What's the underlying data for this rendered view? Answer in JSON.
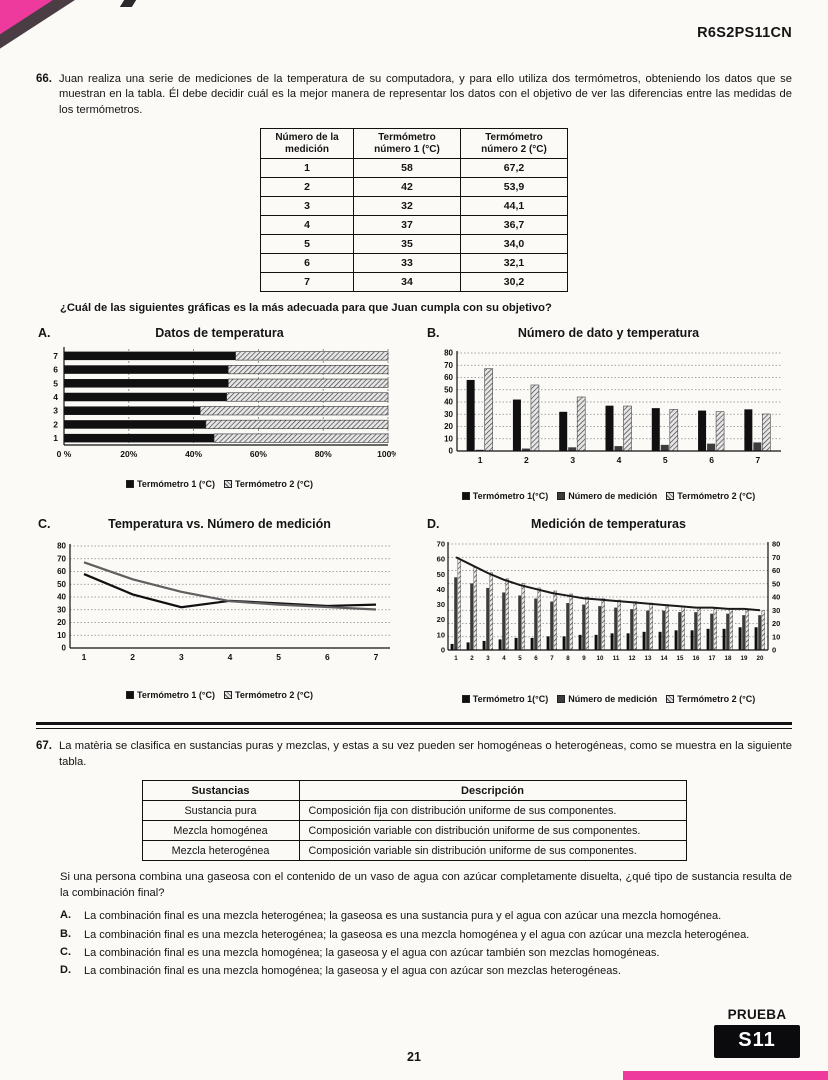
{
  "header": {
    "code": "R6S2PS11CN"
  },
  "q66": {
    "number": "66.",
    "text": "Juan realiza una serie de mediciones de la temperatura de su computadora, y para ello utiliza dos termómetros, obteniendo los datos que se muestran en la tabla. Él debe decidir cuál es la mejor manera de representar los datos con el objetivo de ver las diferencias entre las medidas de los termómetros.",
    "table": {
      "headers": [
        "Número de la medición",
        "Termómetro número 1 (°C)",
        "Termómetro número 2 (°C)"
      ],
      "rows": [
        [
          "1",
          "58",
          "67,2"
        ],
        [
          "2",
          "42",
          "53,9"
        ],
        [
          "3",
          "32",
          "44,1"
        ],
        [
          "4",
          "37",
          "36,7"
        ],
        [
          "5",
          "35",
          "34,0"
        ],
        [
          "6",
          "33",
          "32,1"
        ],
        [
          "7",
          "34",
          "30,2"
        ]
      ]
    },
    "prompt": "¿Cuál de las siguientes gráficas es la más adecuada para que Juan cumpla con su objetivo?"
  },
  "chart_data": [
    {
      "option": "A.",
      "type": "bar",
      "variant": "horizontal-stacked-100pct",
      "title": "Datos de temperatura",
      "categories": [
        "1",
        "2",
        "3",
        "4",
        "5",
        "6",
        "7"
      ],
      "x_ticks": [
        "0 %",
        "20%",
        "40%",
        "60%",
        "80%",
        "100%"
      ],
      "grid": true,
      "legend_position": "bottom",
      "series": [
        {
          "name": "Termómetro 1  (°C)",
          "swatch": "black",
          "values": [
            58,
            42,
            32,
            37,
            35,
            33,
            34
          ]
        },
        {
          "name": "Termómetro 2  (°C)",
          "swatch": "hatch",
          "values": [
            67.2,
            53.9,
            44.1,
            36.7,
            34.0,
            32.1,
            30.2
          ]
        }
      ]
    },
    {
      "option": "B.",
      "type": "bar",
      "variant": "grouped-vertical",
      "title": "Número de dato y temperatura",
      "categories": [
        "1",
        "2",
        "3",
        "4",
        "5",
        "6",
        "7"
      ],
      "ylim": [
        0,
        80
      ],
      "y_ticks": [
        0,
        10,
        20,
        30,
        40,
        50,
        60,
        70,
        80
      ],
      "grid": true,
      "legend_position": "bottom",
      "series": [
        {
          "name": "Termómetro 1(°C)",
          "swatch": "black",
          "values": [
            58,
            42,
            32,
            37,
            35,
            33,
            34
          ]
        },
        {
          "name": "Número de medición",
          "swatch": "dark",
          "values": [
            1,
            2,
            3,
            4,
            5,
            6,
            7
          ]
        },
        {
          "name": "Termómetro 2 (°C)",
          "swatch": "hatch",
          "values": [
            67.2,
            53.9,
            44.1,
            36.7,
            34.0,
            32.1,
            30.2
          ]
        }
      ]
    },
    {
      "option": "C.",
      "type": "line",
      "title": "Temperatura vs. Número de medición",
      "x": [
        1,
        2,
        3,
        4,
        5,
        6,
        7
      ],
      "ylim": [
        0,
        80
      ],
      "y_ticks": [
        0,
        10,
        20,
        30,
        40,
        50,
        60,
        70,
        80
      ],
      "grid": true,
      "legend_position": "bottom",
      "series": [
        {
          "name": "Termómetro 1 (°C)",
          "swatch": "black",
          "values": [
            58,
            42,
            32,
            37,
            35,
            33,
            34
          ]
        },
        {
          "name": "Termómetro 2 (°C)",
          "swatch": "hatch",
          "values": [
            67.2,
            53.9,
            44.1,
            36.7,
            34.0,
            32.1,
            30.2
          ]
        }
      ]
    },
    {
      "option": "D.",
      "type": "bar-line",
      "title": "Medición de temperaturas",
      "categories": [
        "1",
        "2",
        "3",
        "4",
        "5",
        "6",
        "7",
        "8",
        "9",
        "10",
        "11",
        "12",
        "13",
        "14",
        "15",
        "16",
        "17",
        "18",
        "19",
        "20"
      ],
      "ylim_left": [
        0,
        70
      ],
      "ylim_right": [
        0,
        80
      ],
      "y_ticks_left": [
        0,
        10,
        20,
        30,
        40,
        50,
        60,
        70
      ],
      "y_ticks_right": [
        0,
        10,
        20,
        30,
        40,
        50,
        60,
        70,
        80
      ],
      "grid": true,
      "legend_position": "bottom",
      "series": [
        {
          "name": "Termómetro 1(°C)",
          "swatch": "black",
          "values": [
            4,
            5,
            6,
            7,
            8,
            8,
            9,
            9,
            10,
            10,
            11,
            11,
            12,
            12,
            13,
            13,
            14,
            14,
            15,
            15
          ]
        },
        {
          "name": "Número de medición",
          "swatch": "dark",
          "values": [
            48,
            44,
            41,
            38,
            36,
            34,
            32,
            31,
            30,
            29,
            28,
            27,
            26,
            26,
            25,
            25,
            24,
            24,
            23,
            23
          ]
        },
        {
          "name": "Termómetro 2 (°C)",
          "swatch": "hatch",
          "values": [
            60,
            55,
            51,
            47,
            44,
            41,
            39,
            37,
            35,
            34,
            33,
            32,
            31,
            30,
            29,
            28,
            28,
            27,
            27,
            26
          ]
        }
      ],
      "line": {
        "values": [
          70,
          64,
          58,
          53,
          49,
          46,
          43,
          41,
          39,
          38,
          37,
          36,
          35,
          34,
          33,
          32,
          32,
          31,
          31,
          30
        ]
      }
    }
  ],
  "q67": {
    "number": "67.",
    "intro": "La matèria se clasifica en sustancias puras y mezclas, y estas a su vez pueden ser homogéneas o heterogéneas, como se muestra en la siguiente tabla.",
    "table": {
      "headers": [
        "Sustancias",
        "Descripción"
      ],
      "rows": [
        [
          "Sustancia pura",
          "Composición fija con distribución uniforme de sus componentes."
        ],
        [
          "Mezcla homogénea",
          "Composición variable con distribución uniforme de sus componentes."
        ],
        [
          "Mezcla heterogénea",
          "Composición variable sin distribución uniforme de sus componentes."
        ]
      ]
    },
    "question": "Si una persona combina una gaseosa con el contenido de un vaso de agua con azúcar completamente disuelta, ¿qué tipo de sustancia resulta de la combinación final?",
    "options": [
      {
        "label": "A.",
        "text": "La combinación final es una mezcla heterogénea; la gaseosa es una sustancia pura y el agua con azúcar una mezcla homogénea."
      },
      {
        "label": "B.",
        "text": "La combinación final es una mezcla heterogénea; la gaseosa es una mezcla homogénea y el agua con azúcar una mezcla heterogénea."
      },
      {
        "label": "C.",
        "text": "La combinación final es una mezcla homogénea; la gaseosa y el agua con azúcar también son mezclas homogéneas."
      },
      {
        "label": "D.",
        "text": "La combinación final es una mezcla homogénea; la gaseosa y el agua con azúcar son mezclas heterogéneas."
      }
    ]
  },
  "footer": {
    "page": "21",
    "prueba_label": "PRUEBA",
    "badge": "S11"
  }
}
